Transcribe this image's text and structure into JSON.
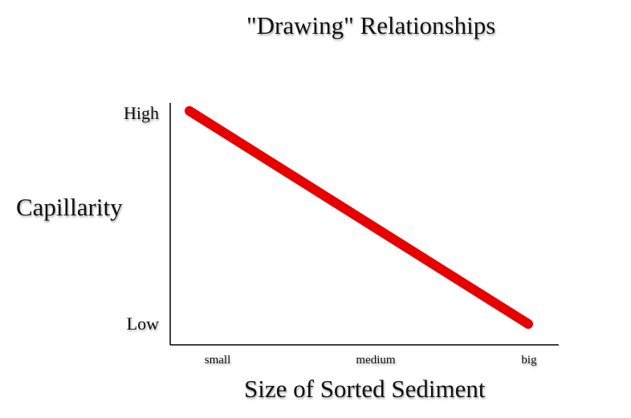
{
  "chart_data": {
    "type": "line",
    "title": "\"Drawing\" Relationships",
    "xlabel": "Size of Sorted Sediment",
    "ylabel": "Capillarity",
    "categories": [
      "small",
      "medium",
      "big"
    ],
    "y_tick_labels": [
      "High",
      "Low"
    ],
    "series": [
      {
        "points": [
          {
            "x": "small",
            "y": "High"
          },
          {
            "x": "big",
            "y": "Low"
          }
        ],
        "color": "#e60000"
      }
    ],
    "grid": false,
    "legend": "none"
  }
}
